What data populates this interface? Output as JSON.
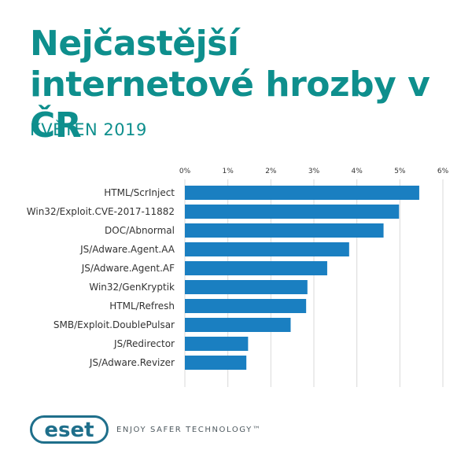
{
  "header": {
    "title": "Nejčastější internetové hrozby v ČR",
    "subtitle": "KVĚTEN 2019"
  },
  "footer": {
    "logo_text": "eset",
    "tagline": "ENJOY SAFER TECHNOLOGY™"
  },
  "colors": {
    "accent": "#0e8f8d",
    "bar": "#1a7fc1",
    "grid": "#d9d9d9",
    "label": "#333333",
    "logo": "#1f6f8b"
  },
  "chart_data": {
    "type": "bar",
    "orientation": "horizontal",
    "categories": [
      "HTML/ScrInject",
      "Win32/Exploit.CVE-2017-11882",
      "DOC/Abnormal",
      "JS/Adware.Agent.AA",
      "JS/Adware.Agent.AF",
      "Win32/GenKryptik",
      "HTML/Refresh",
      "SMB/Exploit.DoublePulsar",
      "JS/Redirector",
      "JS/Adware.Revizer"
    ],
    "values": [
      5.45,
      4.98,
      4.62,
      3.82,
      3.31,
      2.85,
      2.82,
      2.46,
      1.47,
      1.43
    ],
    "xlim": [
      0,
      6
    ],
    "xticks": [
      "0%",
      "1%",
      "2%",
      "3%",
      "4%",
      "5%",
      "6%"
    ],
    "grid": true,
    "axis_position": "top"
  }
}
